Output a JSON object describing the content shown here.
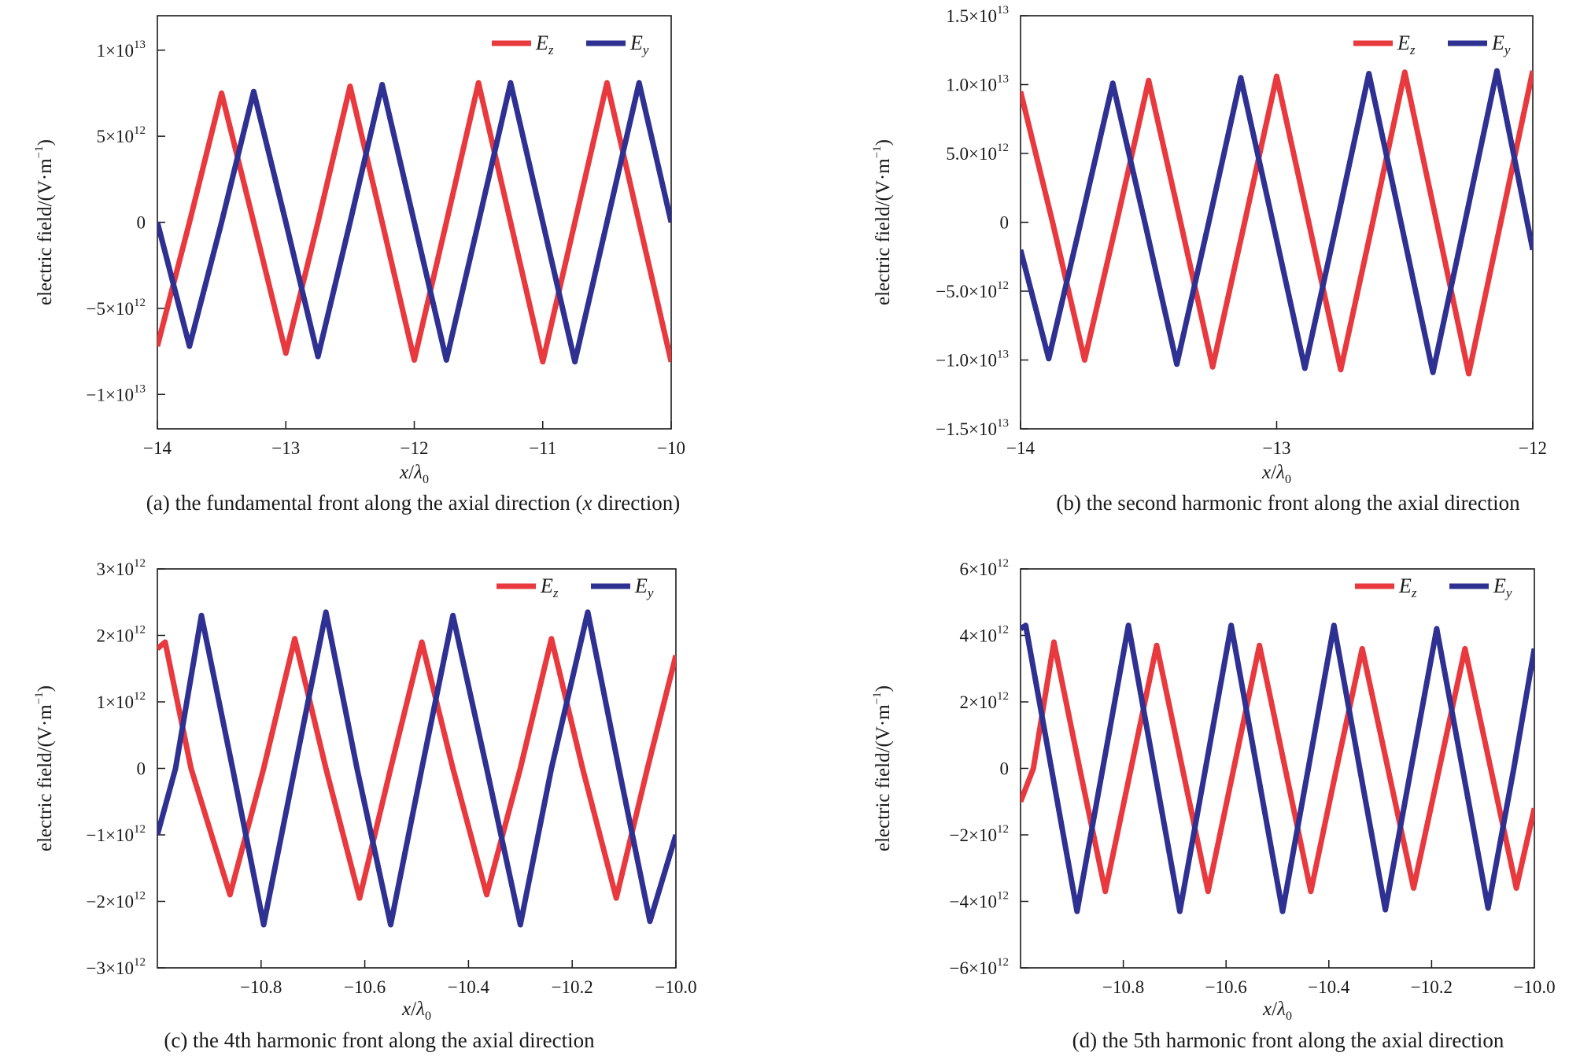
{
  "panels": [
    {
      "caption_prefix": "(a) the fundamental front along the axial direction (",
      "caption_italic": "x",
      "caption_suffix": " direction)"
    },
    {
      "caption_prefix": "(b) the second harmonic front along the axial direction",
      "caption_italic": "",
      "caption_suffix": ""
    },
    {
      "caption_prefix": "(c) the 4th harmonic front along the axial direction",
      "caption_italic": "",
      "caption_suffix": ""
    },
    {
      "caption_prefix": "(d) the 5th harmonic front along the axial direction",
      "caption_italic": "",
      "caption_suffix": ""
    }
  ],
  "colors": {
    "Ez": "#e8393e",
    "Ey": "#2e3192",
    "axis": "#1a1a1a"
  },
  "chart_data": [
    {
      "type": "line",
      "xlabel": "x/λ0",
      "ylabel": "electric field/(V·m⁻¹)",
      "xlim": [
        -14,
        -10
      ],
      "ylim": [
        -12000000000000.0,
        12000000000000.0
      ],
      "x_ticks": [
        {
          "v": -14,
          "t": "−14"
        },
        {
          "v": -13,
          "t": "−13"
        },
        {
          "v": -12,
          "t": "−12"
        },
        {
          "v": -11,
          "t": "−11"
        },
        {
          "v": -10,
          "t": "−10"
        }
      ],
      "y_ticks": [
        {
          "v": 10000000000000.0,
          "m": "1×10",
          "e": "13"
        },
        {
          "v": 5000000000000.0,
          "m": "5×10",
          "e": "12"
        },
        {
          "v": 0,
          "m": "0",
          "e": ""
        },
        {
          "v": -5000000000000.0,
          "m": "−5×10",
          "e": "12"
        },
        {
          "v": -10000000000000.0,
          "m": "−1×10",
          "e": "13"
        }
      ],
      "legend": "top-right",
      "series": [
        {
          "name": "Ez",
          "sub": "z",
          "color": "#e8393e",
          "x": [
            -14.0,
            -13.75,
            -13.5,
            -13.25,
            -13.0,
            -12.75,
            -12.5,
            -12.25,
            -12.0,
            -11.75,
            -11.5,
            -11.25,
            -11.0,
            -10.75,
            -10.5,
            -10.25,
            -10.0
          ],
          "y": [
            -7200000000000.0,
            0,
            7500000000000.0,
            0,
            -7600000000000.0,
            0,
            7900000000000.0,
            0,
            -8000000000000.0,
            0,
            8100000000000.0,
            0,
            -8100000000000.0,
            0,
            8100000000000.0,
            0,
            -8100000000000.0
          ]
        },
        {
          "name": "Ey",
          "sub": "y",
          "color": "#2e3192",
          "x": [
            -14.0,
            -13.75,
            -13.5,
            -13.25,
            -13.0,
            -12.75,
            -12.5,
            -12.25,
            -12.0,
            -11.75,
            -11.5,
            -11.25,
            -11.0,
            -10.75,
            -10.5,
            -10.25,
            -10.0
          ],
          "y": [
            0,
            -7200000000000.0,
            0,
            7600000000000.0,
            0,
            -7800000000000.0,
            0,
            8000000000000.0,
            0,
            -8000000000000.0,
            0,
            8100000000000.0,
            0,
            -8100000000000.0,
            0,
            8100000000000.0,
            0
          ]
        }
      ]
    },
    {
      "type": "line",
      "xlabel": "x/λ0",
      "ylabel": "electric field/(V·m⁻¹)",
      "xlim": [
        -14,
        -12
      ],
      "ylim": [
        -15000000000000.0,
        15000000000000.0
      ],
      "x_ticks": [
        {
          "v": -14,
          "t": "−14"
        },
        {
          "v": -13,
          "t": "−13"
        },
        {
          "v": -12,
          "t": "−12"
        }
      ],
      "y_ticks": [
        {
          "v": 15000000000000.0,
          "m": "1.5×10",
          "e": "13"
        },
        {
          "v": 10000000000000.0,
          "m": "1.0×10",
          "e": "13"
        },
        {
          "v": 5000000000000.0,
          "m": "5.0×10",
          "e": "12"
        },
        {
          "v": 0,
          "m": "0",
          "e": ""
        },
        {
          "v": -5000000000000.0,
          "m": "−5.0×10",
          "e": "12"
        },
        {
          "v": -10000000000000.0,
          "m": "−1.0×10",
          "e": "13"
        },
        {
          "v": -15000000000000.0,
          "m": "−1.5×10",
          "e": "13"
        }
      ],
      "legend": "top-right",
      "series": [
        {
          "name": "Ez",
          "sub": "z",
          "color": "#e8393e",
          "x": [
            -14.0,
            -13.875,
            -13.75,
            -13.625,
            -13.5,
            -13.375,
            -13.25,
            -13.125,
            -13.0,
            -12.875,
            -12.75,
            -12.625,
            -12.5,
            -12.375,
            -12.25,
            -12.125,
            -12.0
          ],
          "y": [
            9500000000000.0,
            0,
            -10000000000000.0,
            0,
            10300000000000.0,
            0,
            -10500000000000.0,
            0,
            10600000000000.0,
            0,
            -10700000000000.0,
            0,
            10900000000000.0,
            0,
            -11000000000000.0,
            0,
            11000000000000.0
          ]
        },
        {
          "name": "Ey",
          "sub": "y",
          "color": "#2e3192",
          "x": [
            -14.0,
            -13.89,
            -13.765,
            -13.64,
            -13.515,
            -13.39,
            -13.265,
            -13.14,
            -13.015,
            -12.89,
            -12.765,
            -12.64,
            -12.515,
            -12.39,
            -12.265,
            -12.14,
            -12.0
          ],
          "y": [
            -2000000000000.0,
            -9900000000000.0,
            0,
            10100000000000.0,
            0,
            -10300000000000.0,
            0,
            10500000000000.0,
            0,
            -10600000000000.0,
            0,
            10800000000000.0,
            0,
            -10900000000000.0,
            0,
            11000000000000.0,
            -2000000000000.0
          ]
        }
      ]
    },
    {
      "type": "line",
      "xlabel": "x/λ0",
      "ylabel": "electric field/(V·m⁻¹)",
      "xlim": [
        -11.0,
        -10.0
      ],
      "ylim": [
        -3000000000000.0,
        3000000000000.0
      ],
      "x_ticks": [
        {
          "v": -10.8,
          "t": "−10.8"
        },
        {
          "v": -10.6,
          "t": "−10.6"
        },
        {
          "v": -10.4,
          "t": "−10.4"
        },
        {
          "v": -10.2,
          "t": "−10.2"
        },
        {
          "v": -10.0,
          "t": "−10.0"
        }
      ],
      "y_ticks": [
        {
          "v": 3000000000000.0,
          "m": "3×10",
          "e": "12"
        },
        {
          "v": 2000000000000.0,
          "m": "2×10",
          "e": "12"
        },
        {
          "v": 1000000000000.0,
          "m": "1×10",
          "e": "12"
        },
        {
          "v": 0,
          "m": "0",
          "e": ""
        },
        {
          "v": -1000000000000.0,
          "m": "−1×10",
          "e": "12"
        },
        {
          "v": -2000000000000.0,
          "m": "−2×10",
          "e": "12"
        },
        {
          "v": -3000000000000.0,
          "m": "−3×10",
          "e": "12"
        }
      ],
      "legend": "top-right",
      "series": [
        {
          "name": "Ez",
          "sub": "z",
          "color": "#e8393e",
          "x": [
            -11.0,
            -10.985,
            -10.935,
            -10.86,
            -10.795,
            -10.735,
            -10.675,
            -10.61,
            -10.55,
            -10.49,
            -10.43,
            -10.365,
            -10.3,
            -10.24,
            -10.18,
            -10.115,
            -10.055,
            -10.0
          ],
          "y": [
            1800000000000.0,
            1900000000000.0,
            0,
            -1900000000000.0,
            0,
            1950000000000.0,
            0,
            -1950000000000.0,
            0,
            1900000000000.0,
            0,
            -1900000000000.0,
            0,
            1950000000000.0,
            0,
            -1950000000000.0,
            0,
            1700000000000.0
          ]
        },
        {
          "name": "Ey",
          "sub": "y",
          "color": "#2e3192",
          "x": [
            -11.0,
            -10.965,
            -10.915,
            -10.855,
            -10.795,
            -10.735,
            -10.675,
            -10.615,
            -10.55,
            -10.49,
            -10.43,
            -10.365,
            -10.3,
            -10.24,
            -10.17,
            -10.11,
            -10.05,
            -10.0
          ],
          "y": [
            -1000000000000.0,
            0,
            2300000000000.0,
            0,
            -2350000000000.0,
            0,
            2350000000000.0,
            0,
            -2350000000000.0,
            0,
            2300000000000.0,
            0,
            -2350000000000.0,
            0,
            2350000000000.0,
            0,
            -2300000000000.0,
            -1000000000000.0
          ]
        }
      ]
    },
    {
      "type": "line",
      "xlabel": "x/λ0",
      "ylabel": "electric field/(V·m⁻¹)",
      "xlim": [
        -11.0,
        -10.0
      ],
      "ylim": [
        -6000000000000.0,
        6000000000000.0
      ],
      "x_ticks": [
        {
          "v": -10.8,
          "t": "−10.8"
        },
        {
          "v": -10.6,
          "t": "−10.6"
        },
        {
          "v": -10.4,
          "t": "−10.4"
        },
        {
          "v": -10.2,
          "t": "−10.2"
        },
        {
          "v": -10.0,
          "t": "−10.0"
        }
      ],
      "y_ticks": [
        {
          "v": 6000000000000.0,
          "m": "6×10",
          "e": "12"
        },
        {
          "v": 4000000000000.0,
          "m": "4×10",
          "e": "12"
        },
        {
          "v": 2000000000000.0,
          "m": "2×10",
          "e": "12"
        },
        {
          "v": 0,
          "m": "0",
          "e": ""
        },
        {
          "v": -2000000000000.0,
          "m": "−2×10",
          "e": "12"
        },
        {
          "v": -4000000000000.0,
          "m": "−4×10",
          "e": "12"
        },
        {
          "v": -6000000000000.0,
          "m": "−6×10",
          "e": "12"
        }
      ],
      "legend": "top-right",
      "series": [
        {
          "name": "Ez",
          "sub": "z",
          "color": "#e8393e",
          "x": [
            -11.0,
            -10.975,
            -10.935,
            -10.885,
            -10.835,
            -10.785,
            -10.735,
            -10.685,
            -10.635,
            -10.585,
            -10.535,
            -10.485,
            -10.435,
            -10.385,
            -10.335,
            -10.285,
            -10.235,
            -10.185,
            -10.135,
            -10.085,
            -10.035,
            -10.0
          ],
          "y": [
            -1000000000000.0,
            0,
            3800000000000.0,
            0,
            -3700000000000.0,
            0,
            3700000000000.0,
            0,
            -3700000000000.0,
            0,
            3700000000000.0,
            0,
            -3700000000000.0,
            0,
            3600000000000.0,
            0,
            -3600000000000.0,
            0,
            3600000000000.0,
            0,
            -3600000000000.0,
            -1200000000000.0
          ]
        },
        {
          "name": "Ey",
          "sub": "y",
          "color": "#2e3192",
          "x": [
            -11.0,
            -10.99,
            -10.94,
            -10.89,
            -10.84,
            -10.79,
            -10.74,
            -10.69,
            -10.64,
            -10.59,
            -10.54,
            -10.49,
            -10.44,
            -10.39,
            -10.34,
            -10.29,
            -10.24,
            -10.19,
            -10.14,
            -10.09,
            -10.04,
            -10.0
          ],
          "y": [
            4200000000000.0,
            4300000000000.0,
            0,
            -4300000000000.0,
            0,
            4300000000000.0,
            0,
            -4300000000000.0,
            0,
            4300000000000.0,
            0,
            -4300000000000.0,
            0,
            4300000000000.0,
            0,
            -4250000000000.0,
            0,
            4200000000000.0,
            0,
            -4200000000000.0,
            0,
            3600000000000.0
          ]
        }
      ]
    }
  ]
}
